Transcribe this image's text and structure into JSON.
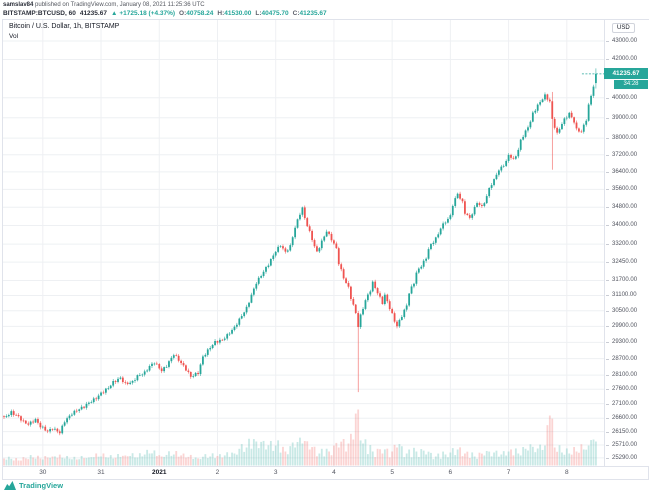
{
  "header": {
    "attribution_user": "samslav84",
    "attribution_rest": " published on TradingView.com, January 08, 2021 11:25:36 UTC",
    "symbol_line": "BITSTAMP:BTCUSD, 60",
    "last_price": "41235.67",
    "change_arrow": "▲",
    "change": "+1725.18 (+4.37%)",
    "o_label": "O:",
    "o_value": "40758.24",
    "h_label": "H:",
    "h_value": "41530.00",
    "l_label": "L:",
    "l_value": "40475.70",
    "c_label": "C:",
    "c_value": "41235.67"
  },
  "legend": {
    "title": "Bitcoin / U.S. Dollar, 1h, BITSTAMP",
    "indicator": "Vol"
  },
  "footer": {
    "brand": "TradingView"
  },
  "chart_data": {
    "type": "candlestick",
    "exchange": "BITSTAMP",
    "symbol": "BTCUSD",
    "title": "Bitcoin / U.S. Dollar",
    "interval": "1h",
    "price_scale_type": "log",
    "currency": "USD",
    "countdown": "34:28",
    "last_price_label": "41235.67",
    "last_candle": {
      "open": 40758.24,
      "high": 41530.0,
      "low": 40475.7,
      "close": 41235.67
    },
    "visible_price_range": [
      25290,
      43000
    ],
    "price_ticks": [
      "43000.00",
      "42000.00",
      "40000.00",
      "39000.00",
      "38000.00",
      "37200.00",
      "36400.00",
      "35600.00",
      "34800.00",
      "34000.00",
      "33200.00",
      "32450.00",
      "31700.00",
      "31100.00",
      "30500.00",
      "29900.00",
      "29300.00",
      "28700.00",
      "28100.00",
      "27600.00",
      "27100.00",
      "26600.00",
      "26150.00",
      "25710.00",
      "25290.00"
    ],
    "time_ticks": [
      {
        "label": "30",
        "t": 16
      },
      {
        "label": "31",
        "t": 40
      },
      {
        "label": "2021",
        "t": 64,
        "bold": true
      },
      {
        "label": "2",
        "t": 88
      },
      {
        "label": "3",
        "t": 112
      },
      {
        "label": "4",
        "t": 136
      },
      {
        "label": "5",
        "t": 160
      },
      {
        "label": "6",
        "t": 184
      },
      {
        "label": "7",
        "t": 208
      },
      {
        "label": "8",
        "t": 232
      }
    ],
    "candle_count": 245,
    "price_path": [
      [
        0,
        26610
      ],
      [
        3,
        26800
      ],
      [
        6,
        26650
      ],
      [
        8,
        26480
      ],
      [
        10,
        26400
      ],
      [
        13,
        26550
      ],
      [
        15,
        26330
      ],
      [
        18,
        26160
      ],
      [
        20,
        26260
      ],
      [
        23,
        26120
      ],
      [
        25,
        26500
      ],
      [
        28,
        26760
      ],
      [
        30,
        26870
      ],
      [
        33,
        27000
      ],
      [
        35,
        27130
      ],
      [
        38,
        27290
      ],
      [
        40,
        27460
      ],
      [
        43,
        27650
      ],
      [
        45,
        27850
      ],
      [
        48,
        28000
      ],
      [
        50,
        27790
      ],
      [
        53,
        27860
      ],
      [
        55,
        28070
      ],
      [
        58,
        28190
      ],
      [
        60,
        28420
      ],
      [
        62,
        28560
      ],
      [
        65,
        28260
      ],
      [
        67,
        28440
      ],
      [
        70,
        28860
      ],
      [
        72,
        28650
      ],
      [
        75,
        28310
      ],
      [
        77,
        28050
      ],
      [
        80,
        28180
      ],
      [
        82,
        28760
      ],
      [
        85,
        29110
      ],
      [
        87,
        29310
      ],
      [
        90,
        29390
      ],
      [
        92,
        29560
      ],
      [
        95,
        29860
      ],
      [
        97,
        30160
      ],
      [
        100,
        30610
      ],
      [
        102,
        31110
      ],
      [
        104,
        31610
      ],
      [
        107,
        32060
      ],
      [
        109,
        32360
      ],
      [
        112,
        32910
      ],
      [
        114,
        33160
      ],
      [
        116,
        32860
      ],
      [
        118,
        33110
      ],
      [
        120,
        33920
      ],
      [
        122,
        34520
      ],
      [
        123,
        34760
      ],
      [
        124,
        34310
      ],
      [
        126,
        33710
      ],
      [
        128,
        33110
      ],
      [
        129,
        32860
      ],
      [
        131,
        33310
      ],
      [
        133,
        33760
      ],
      [
        135,
        33410
      ],
      [
        137,
        33010
      ],
      [
        138,
        32410
      ],
      [
        140,
        31810
      ],
      [
        142,
        31410
      ],
      [
        143,
        31010
      ],
      [
        145,
        30410
      ],
      [
        146,
        29910
      ],
      [
        147,
        30310
      ],
      [
        149,
        30910
      ],
      [
        151,
        31310
      ],
      [
        152,
        31610
      ],
      [
        154,
        31210
      ],
      [
        156,
        30810
      ],
      [
        157,
        31110
      ],
      [
        159,
        30610
      ],
      [
        161,
        30110
      ],
      [
        162,
        29910
      ],
      [
        164,
        30310
      ],
      [
        166,
        30710
      ],
      [
        167,
        31210
      ],
      [
        169,
        31610
      ],
      [
        170,
        32010
      ],
      [
        172,
        32310
      ],
      [
        174,
        32610
      ],
      [
        175,
        33010
      ],
      [
        177,
        33310
      ],
      [
        179,
        33610
      ],
      [
        180,
        33910
      ],
      [
        182,
        34160
      ],
      [
        184,
        34410
      ],
      [
        185,
        34910
      ],
      [
        187,
        35410
      ],
      [
        189,
        35010
      ],
      [
        190,
        34560
      ],
      [
        192,
        34310
      ],
      [
        194,
        34760
      ],
      [
        195,
        35010
      ],
      [
        197,
        34810
      ],
      [
        199,
        35260
      ],
      [
        200,
        35660
      ],
      [
        202,
        36010
      ],
      [
        203,
        36310
      ],
      [
        205,
        36610
      ],
      [
        207,
        36860
      ],
      [
        208,
        37210
      ],
      [
        210,
        36960
      ],
      [
        212,
        37410
      ],
      [
        213,
        37910
      ],
      [
        215,
        38310
      ],
      [
        217,
        38810
      ],
      [
        218,
        39210
      ],
      [
        220,
        39610
      ],
      [
        222,
        39960
      ],
      [
        223,
        40110
      ],
      [
        225,
        39810
      ],
      [
        226,
        38910
      ],
      [
        228,
        38210
      ],
      [
        230,
        38710
      ],
      [
        231,
        38910
      ],
      [
        233,
        39210
      ],
      [
        235,
        38810
      ],
      [
        236,
        38410
      ],
      [
        238,
        38310
      ],
      [
        240,
        38910
      ],
      [
        241,
        39610
      ],
      [
        243,
        40610
      ],
      [
        244,
        41236
      ]
    ],
    "events": [
      {
        "t": 146,
        "low": 27500
      },
      {
        "t": 226,
        "high": 40300,
        "low": 36500
      },
      {
        "t": 244,
        "open": 40758.24,
        "high": 41530.0,
        "low": 40475.7,
        "close": 41235.67
      }
    ],
    "volume_profile": [
      [
        0,
        7
      ],
      [
        6,
        5
      ],
      [
        12,
        8
      ],
      [
        16,
        6
      ],
      [
        20,
        9
      ],
      [
        25,
        7
      ],
      [
        30,
        6
      ],
      [
        35,
        8
      ],
      [
        40,
        9
      ],
      [
        45,
        7
      ],
      [
        50,
        10
      ],
      [
        55,
        8
      ],
      [
        60,
        12
      ],
      [
        65,
        9
      ],
      [
        70,
        11
      ],
      [
        75,
        8
      ],
      [
        80,
        7
      ],
      [
        85,
        9
      ],
      [
        90,
        8
      ],
      [
        95,
        12
      ],
      [
        100,
        18
      ],
      [
        104,
        24
      ],
      [
        108,
        16
      ],
      [
        112,
        20
      ],
      [
        116,
        14
      ],
      [
        120,
        18
      ],
      [
        123,
        22
      ],
      [
        126,
        16
      ],
      [
        130,
        12
      ],
      [
        134,
        14
      ],
      [
        138,
        18
      ],
      [
        142,
        22
      ],
      [
        144,
        26
      ],
      [
        146,
        56
      ],
      [
        148,
        22
      ],
      [
        152,
        14
      ],
      [
        156,
        12
      ],
      [
        160,
        14
      ],
      [
        162,
        18
      ],
      [
        166,
        12
      ],
      [
        170,
        14
      ],
      [
        174,
        11
      ],
      [
        178,
        9
      ],
      [
        182,
        11
      ],
      [
        184,
        13
      ],
      [
        187,
        16
      ],
      [
        190,
        12
      ],
      [
        194,
        9
      ],
      [
        198,
        10
      ],
      [
        202,
        13
      ],
      [
        205,
        11
      ],
      [
        208,
        14
      ],
      [
        212,
        12
      ],
      [
        216,
        15
      ],
      [
        220,
        17
      ],
      [
        223,
        20
      ],
      [
        225,
        50
      ],
      [
        227,
        18
      ],
      [
        230,
        13
      ],
      [
        233,
        12
      ],
      [
        236,
        14
      ],
      [
        239,
        16
      ],
      [
        241,
        20
      ],
      [
        243,
        26
      ],
      [
        244,
        24
      ]
    ],
    "colors": {
      "up": "#26a69a",
      "down": "#ef5350",
      "vol_up": "rgba(38,166,154,0.25)",
      "vol_down": "rgba(239,83,80,0.25)",
      "grid": "#eef0f3",
      "accent": "#26a69a"
    }
  }
}
